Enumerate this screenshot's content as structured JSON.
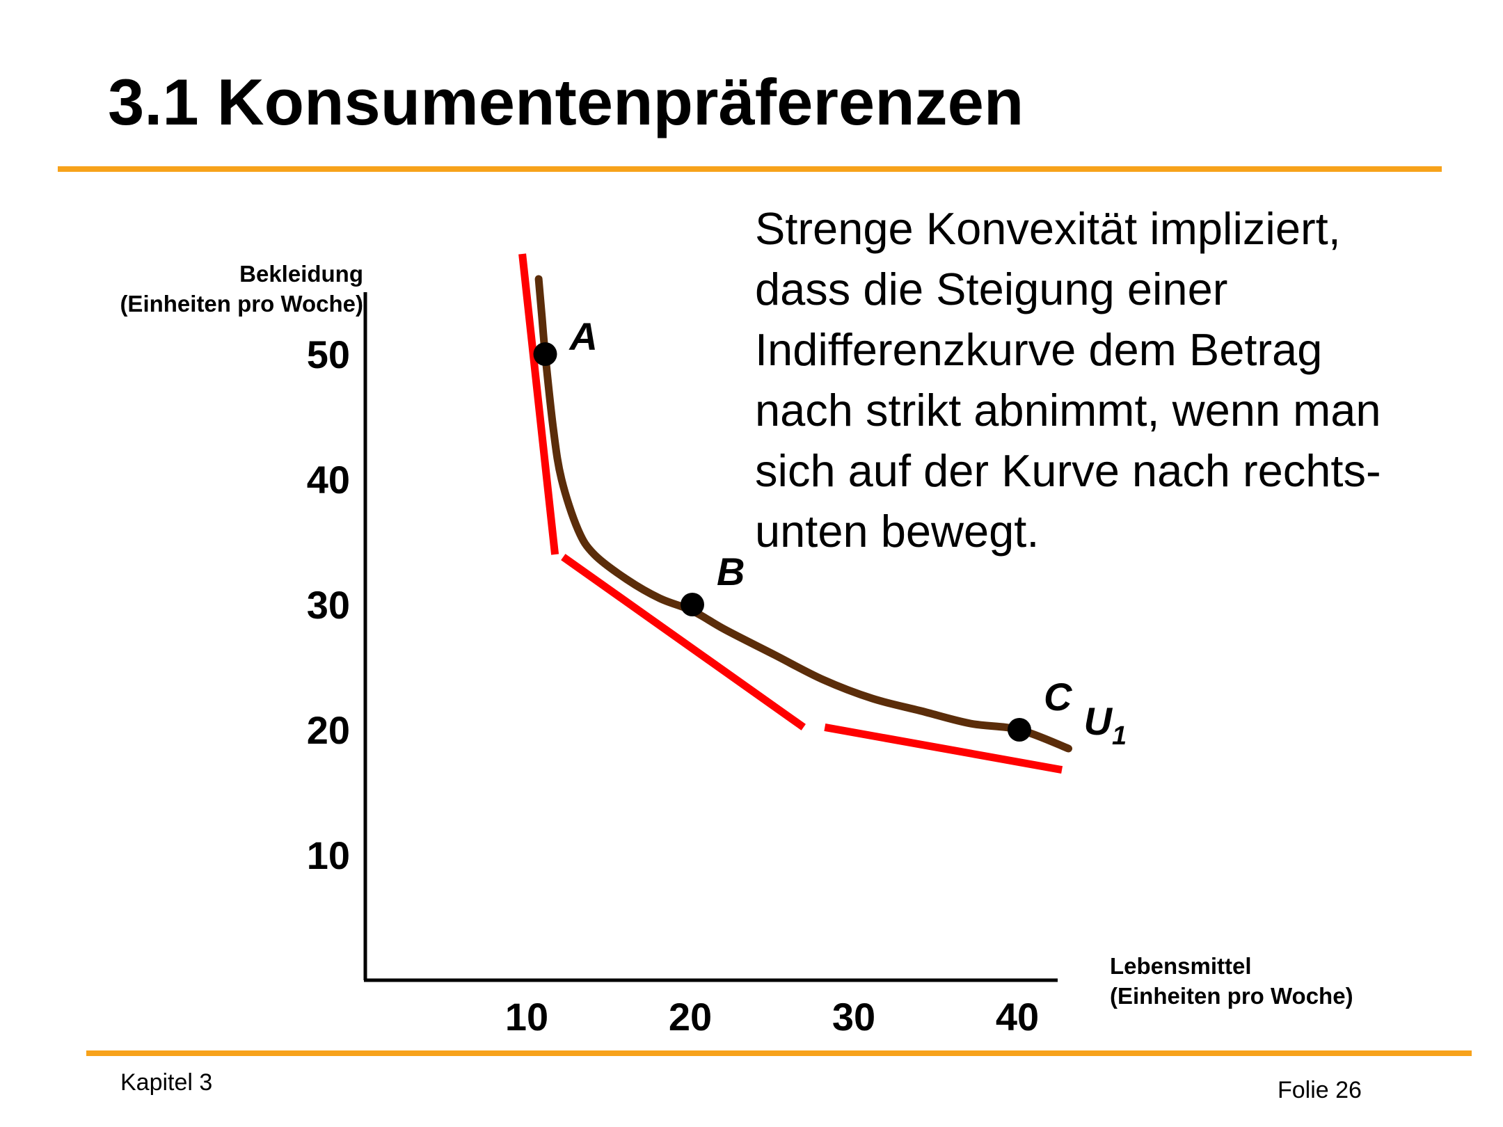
{
  "slide": {
    "title": "3.1 Konsumentenpräferenzen",
    "description_lines": [
      "Strenge Konvexität impliziert,",
      "dass die Steigung einer",
      "Indifferenzkurve dem Betrag",
      "nach strikt abnimmt, wenn man",
      "sich auf der Kurve nach rechts-",
      "unten bewegt."
    ],
    "footer_left": "Kapitel 3",
    "footer_right": "Folie 26",
    "accent_color": "#f7a21b"
  },
  "chart_data": {
    "type": "line",
    "xlabel_lines": [
      "Lebensmittel",
      "(Einheiten pro Woche)"
    ],
    "ylabel_lines": [
      "Bekleidung",
      "(Einheiten pro Woche)"
    ],
    "xticks": [
      10,
      20,
      30,
      40
    ],
    "yticks": [
      10,
      20,
      30,
      40,
      50
    ],
    "xlim": [
      0,
      42
    ],
    "ylim": [
      0,
      55
    ],
    "grid": false,
    "series": [
      {
        "name": "U1",
        "name_base": "U",
        "name_sub": "1",
        "color": "#5b2d0a",
        "x": [
          10.6,
          10.8,
          11,
          11.5,
          12,
          13,
          14,
          16,
          18,
          20,
          22,
          25,
          28,
          31,
          34,
          37,
          40,
          43
        ],
        "y": [
          56,
          53,
          50,
          44,
          40,
          36,
          34,
          32,
          30.5,
          29.5,
          28,
          26,
          24,
          22.5,
          21.5,
          20.5,
          20,
          18.5
        ]
      }
    ],
    "points": [
      {
        "label": "A",
        "x": 11,
        "y": 50
      },
      {
        "label": "B",
        "x": 20,
        "y": 30
      },
      {
        "label": "C",
        "x": 40,
        "y": 20
      }
    ],
    "tangent_color": "#ff0000",
    "tangents": [
      {
        "point": "A",
        "x": [
          9.6,
          11.6
        ],
        "y": [
          58,
          34
        ]
      },
      {
        "point": "B",
        "x": [
          12.1,
          26.8
        ],
        "y": [
          33.8,
          20.2
        ]
      },
      {
        "point": "C",
        "x": [
          28.1,
          42.6
        ],
        "y": [
          20.2,
          16.8
        ]
      }
    ]
  }
}
